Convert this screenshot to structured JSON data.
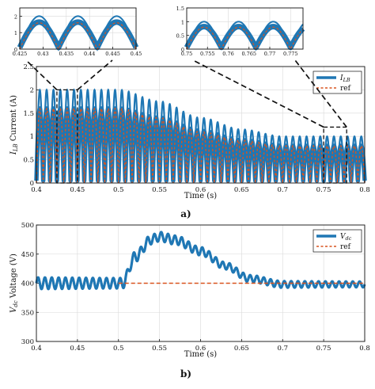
{
  "colors": {
    "signal": "#1f77b4",
    "reference": "#d9531e",
    "zoom_box": "#111111"
  },
  "chart_data": [
    {
      "id": "a",
      "type": "line",
      "caption": "a)",
      "xlabel": "Time (s)",
      "ylabel_main": "I",
      "ylabel_sub": "LB",
      "ylabel_rest": " Current (A)",
      "xlim": [
        0.4,
        0.8
      ],
      "ylim": [
        0,
        2.5
      ],
      "xticks": [
        "0.4",
        "0.45",
        "0.5",
        "0.55",
        "0.6",
        "0.65",
        "0.7",
        "0.75",
        "0.8"
      ],
      "yticks": [
        "0",
        "0.5",
        "1",
        "1.5",
        "2",
        "2.5"
      ],
      "grid": true,
      "legend_position": "top-right",
      "series": [
        {
          "name_main": "I",
          "name_sub": "LB",
          "style": "thick-solid",
          "color": "#1f77b4",
          "ripple_hz": 120,
          "peak_envelope": {
            "t": [
              0.4,
              0.5,
              0.55,
              0.6,
              0.65,
              0.7,
              0.8
            ],
            "v": [
              2.0,
              2.0,
              1.75,
              1.4,
              1.15,
              1.0,
              1.0
            ]
          }
        },
        {
          "name": "ref",
          "style": "dashed",
          "color": "#d9531e",
          "ripple_hz": 120,
          "peak_envelope": {
            "t": [
              0.4,
              0.5,
              0.55,
              0.6,
              0.65,
              0.7,
              0.8
            ],
            "v": [
              1.6,
              1.6,
              1.4,
              1.1,
              0.92,
              0.8,
              0.8
            ]
          }
        }
      ],
      "zoom_regions": [
        {
          "x": [
            0.425,
            0.45
          ],
          "y": [
            0,
            2.0
          ]
        },
        {
          "x": [
            0.75,
            0.778
          ],
          "y": [
            0,
            1.2
          ]
        }
      ]
    },
    {
      "id": "a-inset-1",
      "type": "line",
      "xlim": [
        0.425,
        0.45
      ],
      "ylim": [
        0,
        2.5
      ],
      "xticks": [
        "0.425",
        "0.43",
        "0.435",
        "0.44",
        "0.445",
        "0.45"
      ],
      "yticks": [
        "0",
        "1",
        "2"
      ],
      "grid": true,
      "series": [
        {
          "style": "thick-solid",
          "color": "#1f77b4",
          "ripple_hz": 120,
          "peak": 2.0
        },
        {
          "style": "dashed",
          "color": "#d9531e",
          "ripple_hz": 120,
          "peak": 1.6
        }
      ]
    },
    {
      "id": "a-inset-2",
      "type": "line",
      "xlim": [
        0.75,
        0.778
      ],
      "ylim": [
        0,
        1.5
      ],
      "xticks": [
        "0.75",
        "0.755",
        "0.76",
        "0.765",
        "0.77",
        "0.775"
      ],
      "yticks": [
        "0",
        "0.5",
        "1",
        "1.5"
      ],
      "grid": true,
      "series": [
        {
          "style": "thick-solid",
          "color": "#1f77b4",
          "ripple_hz": 120,
          "peak": 1.0
        },
        {
          "style": "dashed",
          "color": "#d9531e",
          "ripple_hz": 120,
          "peak": 0.8
        }
      ]
    },
    {
      "id": "b",
      "type": "line",
      "caption": "b)",
      "xlabel": "Time (s)",
      "ylabel_main": "V",
      "ylabel_sub": "dc",
      "ylabel_rest": " Voltage (V)",
      "xlim": [
        0.4,
        0.8
      ],
      "ylim": [
        300,
        500
      ],
      "xticks": [
        "0.4",
        "0.45",
        "0.5",
        "0.55",
        "0.6",
        "0.65",
        "0.7",
        "0.75",
        "0.8"
      ],
      "yticks": [
        "300",
        "350",
        "400",
        "450",
        "500"
      ],
      "grid": true,
      "legend_position": "top-right",
      "series": [
        {
          "name_main": "V",
          "name_sub": "dc",
          "style": "thick-solid",
          "color": "#1f77b4",
          "ripple_hz": 120,
          "mean": {
            "t": [
              0.4,
              0.5,
              0.505,
              0.52,
              0.54,
              0.55,
              0.57,
              0.6,
              0.63,
              0.66,
              0.7,
              0.8
            ],
            "v": [
              400,
              400,
              400,
              445,
              475,
              480,
              474,
              455,
              430,
              408,
              398,
              398
            ]
          },
          "ripple_amplitude": {
            "t": [
              0.4,
              0.5,
              0.55,
              0.65,
              0.8
            ],
            "v": [
              10,
              9,
              8,
              6,
              5
            ]
          }
        },
        {
          "name": "ref",
          "style": "dashed",
          "color": "#d9531e",
          "line": {
            "t": [
              0.5,
              0.8
            ],
            "v": [
              400,
              400
            ]
          }
        }
      ]
    }
  ]
}
